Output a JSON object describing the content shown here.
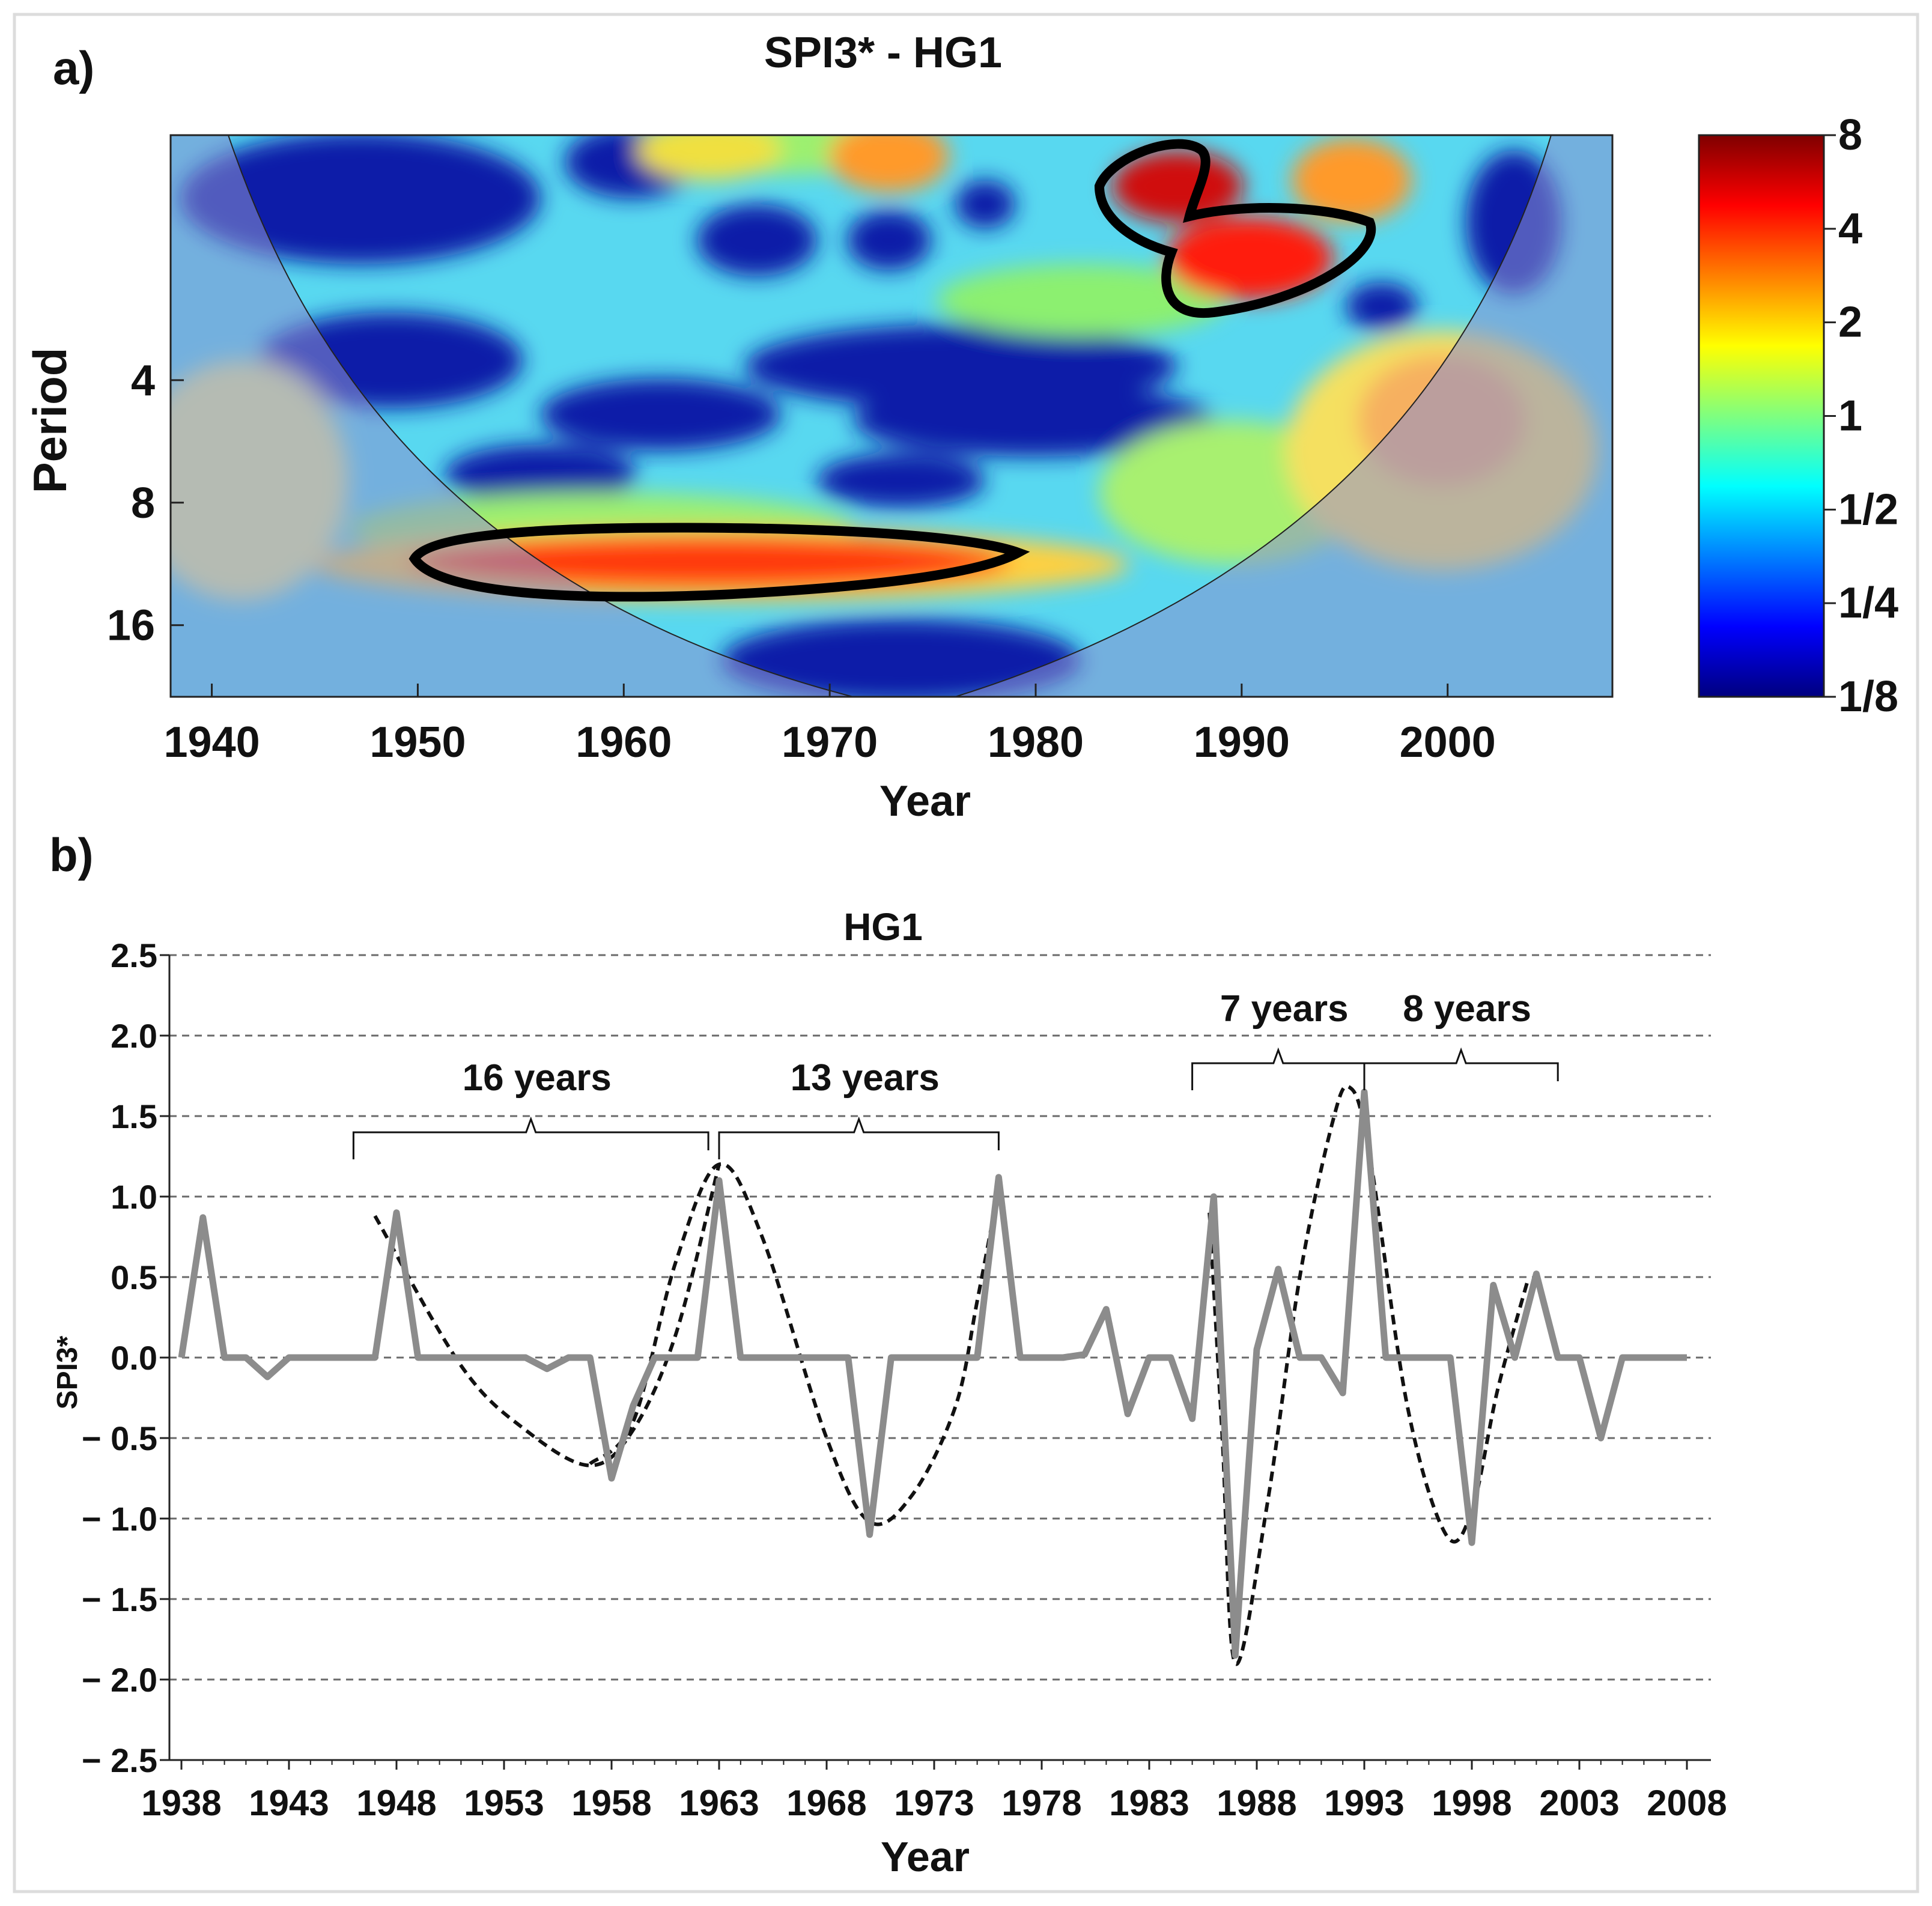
{
  "chart_data": [
    {
      "panel_label": "a)",
      "type": "heatmap",
      "title": "SPI3* - HG1",
      "xlabel": "Year",
      "ylabel": "Period",
      "x_ticks": [
        "1940",
        "1950",
        "1960",
        "1970",
        "1980",
        "1990",
        "2000"
      ],
      "x_tick_values": [
        1940,
        1950,
        1960,
        1970,
        1980,
        1990,
        2000
      ],
      "xlim": [
        1938,
        2008
      ],
      "y_ticks": [
        "4",
        "8",
        "16"
      ],
      "y_tick_values": [
        4,
        8,
        16
      ],
      "y_scale": "log2",
      "ylim": [
        1,
        24
      ],
      "colorbar": {
        "scale": "log2",
        "tick_labels": [
          "8",
          "4",
          "2",
          "1",
          "1/2",
          "1/4",
          "1/8"
        ],
        "tick_values": [
          8,
          4,
          2,
          1,
          0.5,
          0.25,
          0.125
        ],
        "colors": [
          "#00007f",
          "#0000ff",
          "#007fff",
          "#00ffff",
          "#7fff7f",
          "#ffff00",
          "#ff7f00",
          "#ff0000",
          "#7f0000"
        ]
      },
      "cone_of_influence": true,
      "significant_regions": [
        {
          "x_range": [
            1950,
            1979
          ],
          "period_range": [
            12.5,
            16.5
          ]
        },
        {
          "x_range": [
            1984,
            1996
          ],
          "period_range": [
            1.5,
            4.5
          ]
        }
      ]
    },
    {
      "panel_label": "b)",
      "type": "line",
      "title": "HG1",
      "xlabel": "Year",
      "ylabel": "SPI3*",
      "x_ticks": [
        "1938",
        "1943",
        "1948",
        "1953",
        "1958",
        "1963",
        "1968",
        "1973",
        "1978",
        "1983",
        "1988",
        "1993",
        "1998",
        "2003",
        "2008"
      ],
      "y_ticks": [
        "2.5",
        "2.0",
        "1.5",
        "1.0",
        "0.5",
        "0.0",
        "− 0.5",
        "− 1.0",
        "− 1.5",
        "− 2.0",
        "− 2.5"
      ],
      "ylim": [
        -2.5,
        2.5
      ],
      "grid": "horizontal-dashed",
      "series": [
        {
          "color": "#8c8c8c",
          "x": [
            1938,
            1939,
            1940,
            1941,
            1942,
            1943,
            1944,
            1945,
            1946,
            1947,
            1948,
            1949,
            1950,
            1951,
            1952,
            1953,
            1954,
            1955,
            1956,
            1957,
            1958,
            1959,
            1960,
            1961,
            1962,
            1963,
            1964,
            1965,
            1966,
            1967,
            1968,
            1969,
            1970,
            1971,
            1972,
            1973,
            1974,
            1975,
            1976,
            1977,
            1978,
            1979,
            1980,
            1981,
            1982,
            1983,
            1984,
            1985,
            1986,
            1987,
            1988,
            1989,
            1990,
            1991,
            1992,
            1993,
            1994,
            1995,
            1996,
            1997,
            1998,
            1999,
            2000,
            2001,
            2002,
            2003,
            2004,
            2005,
            2006,
            2007,
            2008
          ],
          "y": [
            0,
            0.87,
            0,
            0,
            -0.12,
            0,
            0,
            0,
            0,
            0,
            0.9,
            0,
            0,
            0,
            0,
            0,
            0,
            -0.07,
            0,
            0,
            -0.75,
            -0.3,
            0,
            0,
            0,
            1.1,
            0,
            0,
            0,
            0,
            0,
            0,
            -1.1,
            0,
            0,
            0,
            0,
            0,
            1.12,
            0,
            0,
            0,
            0.02,
            0.3,
            -0.35,
            0,
            0,
            -0.38,
            1.0,
            -1.85,
            0.05,
            0.55,
            0,
            0,
            -0.22,
            1.65,
            0,
            0,
            0,
            0,
            -1.15,
            0.45,
            0,
            0.52,
            0,
            0,
            -0.5,
            0,
            0,
            0,
            0
          ]
        }
      ],
      "fitted_curves": [
        {
          "style": "dashed",
          "x_range": [
            1947,
            1964
          ],
          "peak": 1.2,
          "trough": -0.68
        },
        {
          "style": "dashed",
          "x_range": [
            1957,
            1975
          ],
          "trough": -1.05
        },
        {
          "style": "dashed",
          "x_range": [
            1986,
            1994
          ],
          "peak": 1.68,
          "trough": -1.92
        },
        {
          "style": "dashed",
          "x_range": [
            1993,
            2001
          ],
          "trough": -1.12
        }
      ],
      "annotations": [
        {
          "text": "16 years",
          "x_range": [
            1946,
            1962.5
          ]
        },
        {
          "text": "13 years",
          "x_range": [
            1963,
            1976
          ]
        },
        {
          "text": "7 years",
          "x_range": [
            1985,
            1993
          ]
        },
        {
          "text": "8 years",
          "x_range": [
            1993,
            2002
          ]
        }
      ]
    }
  ]
}
